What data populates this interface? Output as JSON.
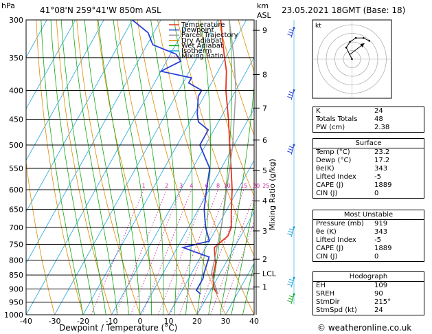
{
  "header": {
    "location": "41°08'N  259°41'W  850m  ASL",
    "datetime": "23.05.2021  18GMT  (Base: 18)",
    "hpa_label": "hPa",
    "km_label": "km",
    "asl_label": "ASL"
  },
  "footer": {
    "credit": "© weatheronline.co.uk"
  },
  "legend": [
    {
      "label": "Temperature",
      "color": "#e8331e",
      "style": "solid"
    },
    {
      "label": "Dewpoint",
      "color": "#2a3fd6",
      "style": "solid"
    },
    {
      "label": "Parcel Trajectory",
      "color": "#a0a0a0",
      "style": "solid"
    },
    {
      "label": "Dry Adiabat",
      "color": "#e08a00",
      "style": "solid"
    },
    {
      "label": "Wet Adiabat",
      "color": "#11a811",
      "style": "solid"
    },
    {
      "label": "Isotherm",
      "color": "#1aa5e0",
      "style": "solid"
    },
    {
      "label": "Mixing Ratio",
      "color": "#cc1a9a",
      "style": "dotted"
    }
  ],
  "hodograph": {
    "unit_label": "kt"
  },
  "table": {
    "indices": [
      {
        "label": "K",
        "value": "24"
      },
      {
        "label": "Totals Totals",
        "value": "48"
      },
      {
        "label": "PW (cm)",
        "value": "2.38"
      }
    ],
    "surface": {
      "title": "Surface",
      "rows": [
        {
          "label": "Temp (°C)",
          "value": "23.2"
        },
        {
          "label": "Dewp (°C)",
          "value": "17.2"
        },
        {
          "label": "θe(K)",
          "value": "343"
        },
        {
          "label": "Lifted Index",
          "value": "-5"
        },
        {
          "label": "CAPE (J)",
          "value": "1889"
        },
        {
          "label": "CIN (J)",
          "value": "0"
        }
      ]
    },
    "most_unstable": {
      "title": "Most Unstable",
      "rows": [
        {
          "label": "Pressure (mb)",
          "value": "919"
        },
        {
          "label": "θe (K)",
          "value": "343"
        },
        {
          "label": "Lifted Index",
          "value": "-5"
        },
        {
          "label": "CAPE (J)",
          "value": "1889"
        },
        {
          "label": "CIN (J)",
          "value": "0"
        }
      ]
    },
    "hodograph": {
      "title": "Hodograph",
      "rows": [
        {
          "label": "EH",
          "value": "109"
        },
        {
          "label": "SREH",
          "value": "90"
        },
        {
          "label": "StmDir",
          "value": "215°"
        },
        {
          "label": "StmSpd (kt)",
          "value": "24"
        }
      ]
    }
  },
  "chart_data": {
    "type": "line",
    "title": "",
    "xlabel": "Dewpoint / Temperature (°C)",
    "ylabel": "hPa",
    "right_axis_label": "Mixing Ratio (g/kg)",
    "xlim": [
      -40,
      40
    ],
    "ylim": [
      1000,
      300
    ],
    "x_ticks": [
      -40,
      -30,
      -20,
      -10,
      0,
      10,
      20,
      30,
      40
    ],
    "pressure_levels": [
      300,
      350,
      400,
      450,
      500,
      550,
      600,
      650,
      700,
      750,
      800,
      850,
      900,
      950,
      1000
    ],
    "km_ticks": [
      {
        "p": 313,
        "label": "9"
      },
      {
        "p": 375,
        "label": "8"
      },
      {
        "p": 430,
        "label": "7"
      },
      {
        "p": 490,
        "label": "6"
      },
      {
        "p": 555,
        "label": "5"
      },
      {
        "p": 628,
        "label": "4"
      },
      {
        "p": 710,
        "label": "3"
      },
      {
        "p": 797,
        "label": "2"
      },
      {
        "p": 845,
        "label": "LCL"
      },
      {
        "p": 893,
        "label": "1"
      }
    ],
    "mixing_ratio_labels": [
      "1",
      "2",
      "3",
      "4",
      "6",
      "8",
      "10",
      "15",
      "20",
      "25"
    ],
    "mixing_ratio_values": [
      1,
      2,
      3,
      4,
      6,
      8,
      10,
      15,
      20,
      25
    ],
    "series": [
      {
        "name": "Temperature",
        "color": "#e8331e",
        "points": [
          [
            919,
            23.2
          ],
          [
            900,
            21
          ],
          [
            870,
            19
          ],
          [
            850,
            18
          ],
          [
            810,
            16.5
          ],
          [
            790,
            15
          ],
          [
            760,
            13
          ],
          [
            745,
            14
          ],
          [
            725,
            15.5
          ],
          [
            700,
            15
          ],
          [
            650,
            11.5
          ],
          [
            600,
            8
          ],
          [
            550,
            3.5
          ],
          [
            500,
            -1.5
          ],
          [
            450,
            -7
          ],
          [
            400,
            -13.5
          ],
          [
            370,
            -17
          ],
          [
            340,
            -22
          ],
          [
            300,
            -29
          ]
        ]
      },
      {
        "name": "Dewpoint",
        "color": "#2a3fd6",
        "points": [
          [
            919,
            17.2
          ],
          [
            905,
            15
          ],
          [
            860,
            15
          ],
          [
            850,
            14.5
          ],
          [
            790,
            13
          ],
          [
            760,
            2
          ],
          [
            740,
            10
          ],
          [
            700,
            6
          ],
          [
            650,
            2
          ],
          [
            600,
            -1
          ],
          [
            550,
            -4
          ],
          [
            500,
            -12
          ],
          [
            470,
            -12
          ],
          [
            455,
            -17
          ],
          [
            440,
            -19
          ],
          [
            410,
            -22
          ],
          [
            400,
            -22
          ],
          [
            388,
            -28
          ],
          [
            380,
            -28
          ],
          [
            370,
            -40
          ],
          [
            355,
            -35
          ],
          [
            345,
            -38
          ],
          [
            332,
            -48
          ],
          [
            316,
            -52
          ],
          [
            300,
            -60
          ]
        ]
      },
      {
        "name": "Parcel Trajectory",
        "color": "#a0a0a0",
        "points": [
          [
            919,
            23.2
          ],
          [
            845,
            17
          ],
          [
            800,
            15.5
          ],
          [
            750,
            13.5
          ],
          [
            700,
            11.5
          ],
          [
            650,
            9
          ],
          [
            600,
            6
          ],
          [
            550,
            3
          ],
          [
            500,
            -0.5
          ],
          [
            450,
            -5
          ],
          [
            400,
            -10
          ],
          [
            350,
            -17
          ],
          [
            300,
            -26
          ]
        ]
      }
    ]
  }
}
